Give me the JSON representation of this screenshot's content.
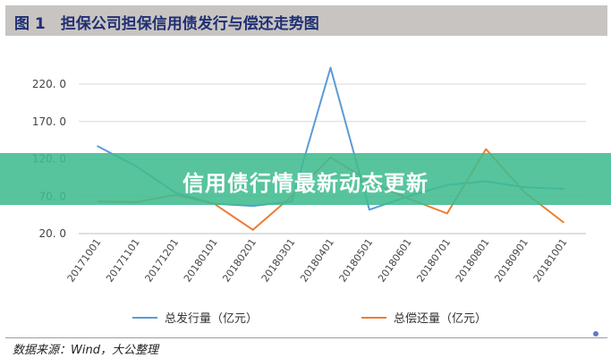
{
  "title": "图 1　担保公司担保信用债发行与偿还走势图",
  "banner_text": "信用债行情最新动态更新",
  "source": "数据来源：Wind，大公整理",
  "chart_data": {
    "type": "line",
    "categories": [
      "20171001",
      "20171101",
      "20171201",
      "20180101",
      "20180201",
      "20180301",
      "20180401",
      "20180501",
      "20180601",
      "20180701",
      "20180801",
      "20180901",
      "20181001"
    ],
    "series": [
      {
        "name": "总发行量（亿元）",
        "color": "#5b9bd5",
        "values": [
          137,
          110,
          75,
          60,
          57,
          63,
          242,
          52,
          70,
          85,
          90,
          82,
          80
        ]
      },
      {
        "name": "总偿还量（亿元）",
        "color": "#ed7d31",
        "values": [
          63,
          62,
          72,
          60,
          25,
          70,
          122,
          90,
          67,
          47,
          133,
          75,
          35
        ]
      }
    ],
    "y_ticks": [
      "220. 0",
      "170. 0",
      "120. 0",
      "70. 0",
      "20. 0"
    ],
    "y_tick_values": [
      220,
      170,
      120,
      70,
      20
    ],
    "ylim": [
      20,
      245
    ],
    "grid": true,
    "legend": "bottom"
  },
  "colors": {
    "title_bg": "#c8c4c1",
    "title_text": "#1f2f73",
    "banner": "#40bc90"
  }
}
